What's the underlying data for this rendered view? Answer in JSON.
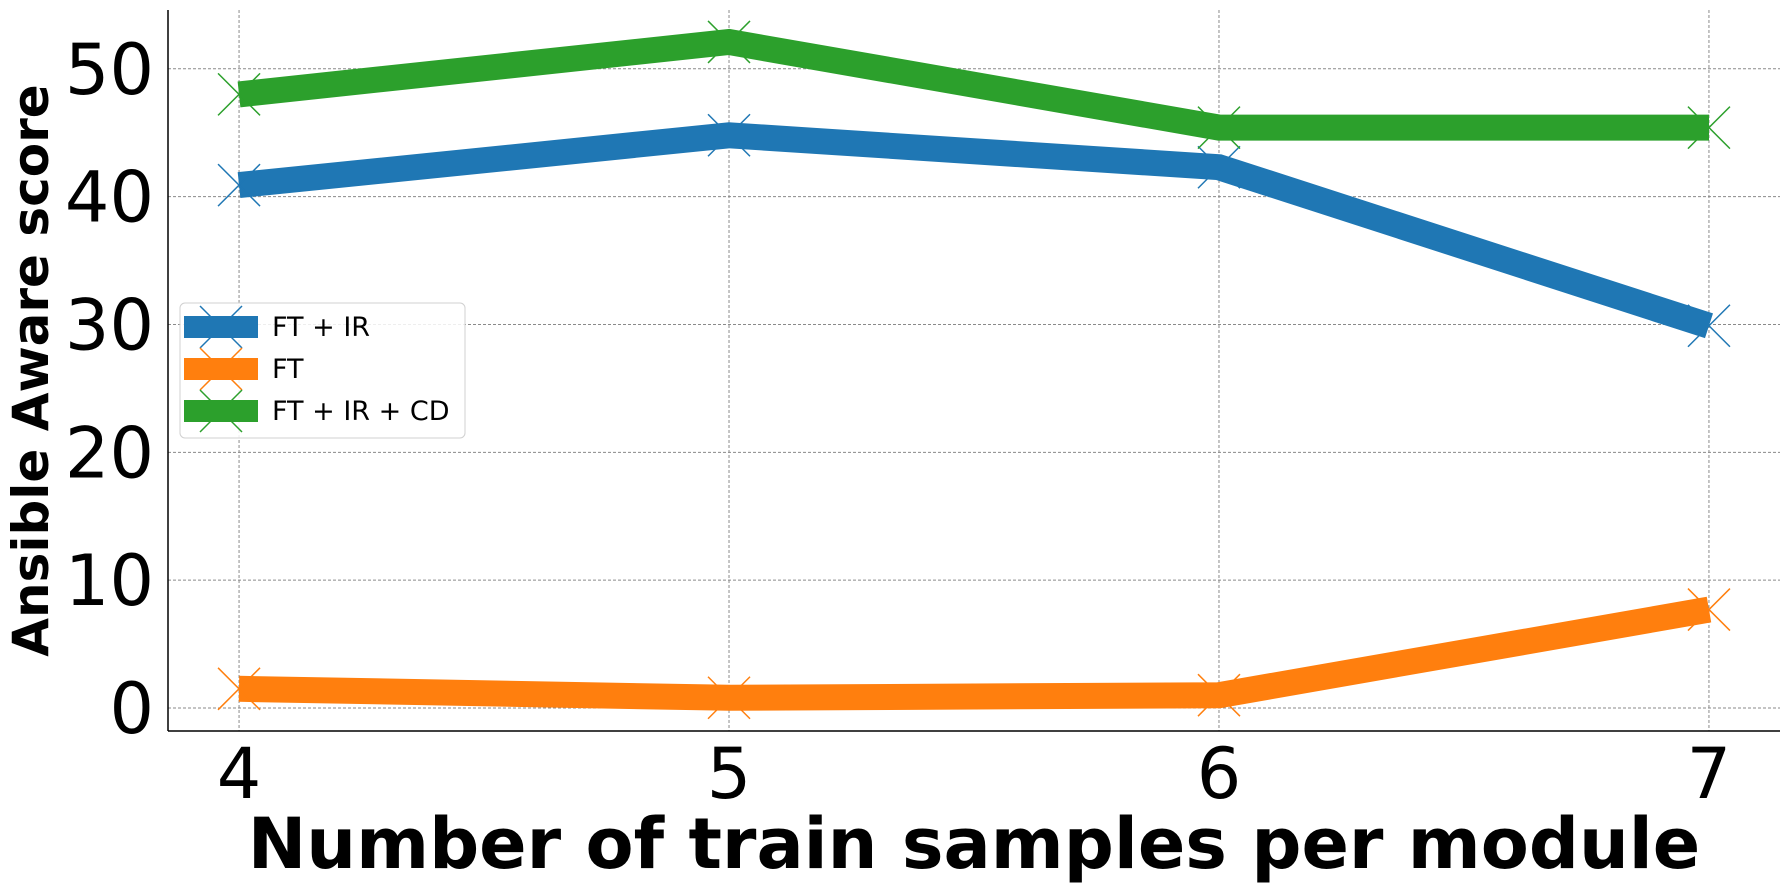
{
  "chart_data": {
    "type": "line",
    "xlabel": "Number of train samples per module",
    "ylabel": "Ansible Aware score",
    "x": [
      4,
      5,
      6,
      7
    ],
    "x_ticks": [
      "4",
      "5",
      "6",
      "7"
    ],
    "y_ticks": [
      "0",
      "10",
      "20",
      "30",
      "40",
      "50"
    ],
    "xlim": [
      3.855,
      7.145
    ],
    "ylim": [
      -1.8,
      54.6
    ],
    "grid": true,
    "legend_position": "center-left",
    "series": [
      {
        "name": "FT + IR",
        "color": "#1f77b4",
        "values": [
          40.9,
          44.8,
          42.3,
          29.9
        ]
      },
      {
        "name": "FT",
        "color": "#ff7f0e",
        "values": [
          1.5,
          0.8,
          1.0,
          7.7
        ]
      },
      {
        "name": "FT + IR + CD",
        "color": "#2ca02c",
        "values": [
          48.0,
          52.1,
          45.4,
          45.4
        ]
      }
    ]
  }
}
